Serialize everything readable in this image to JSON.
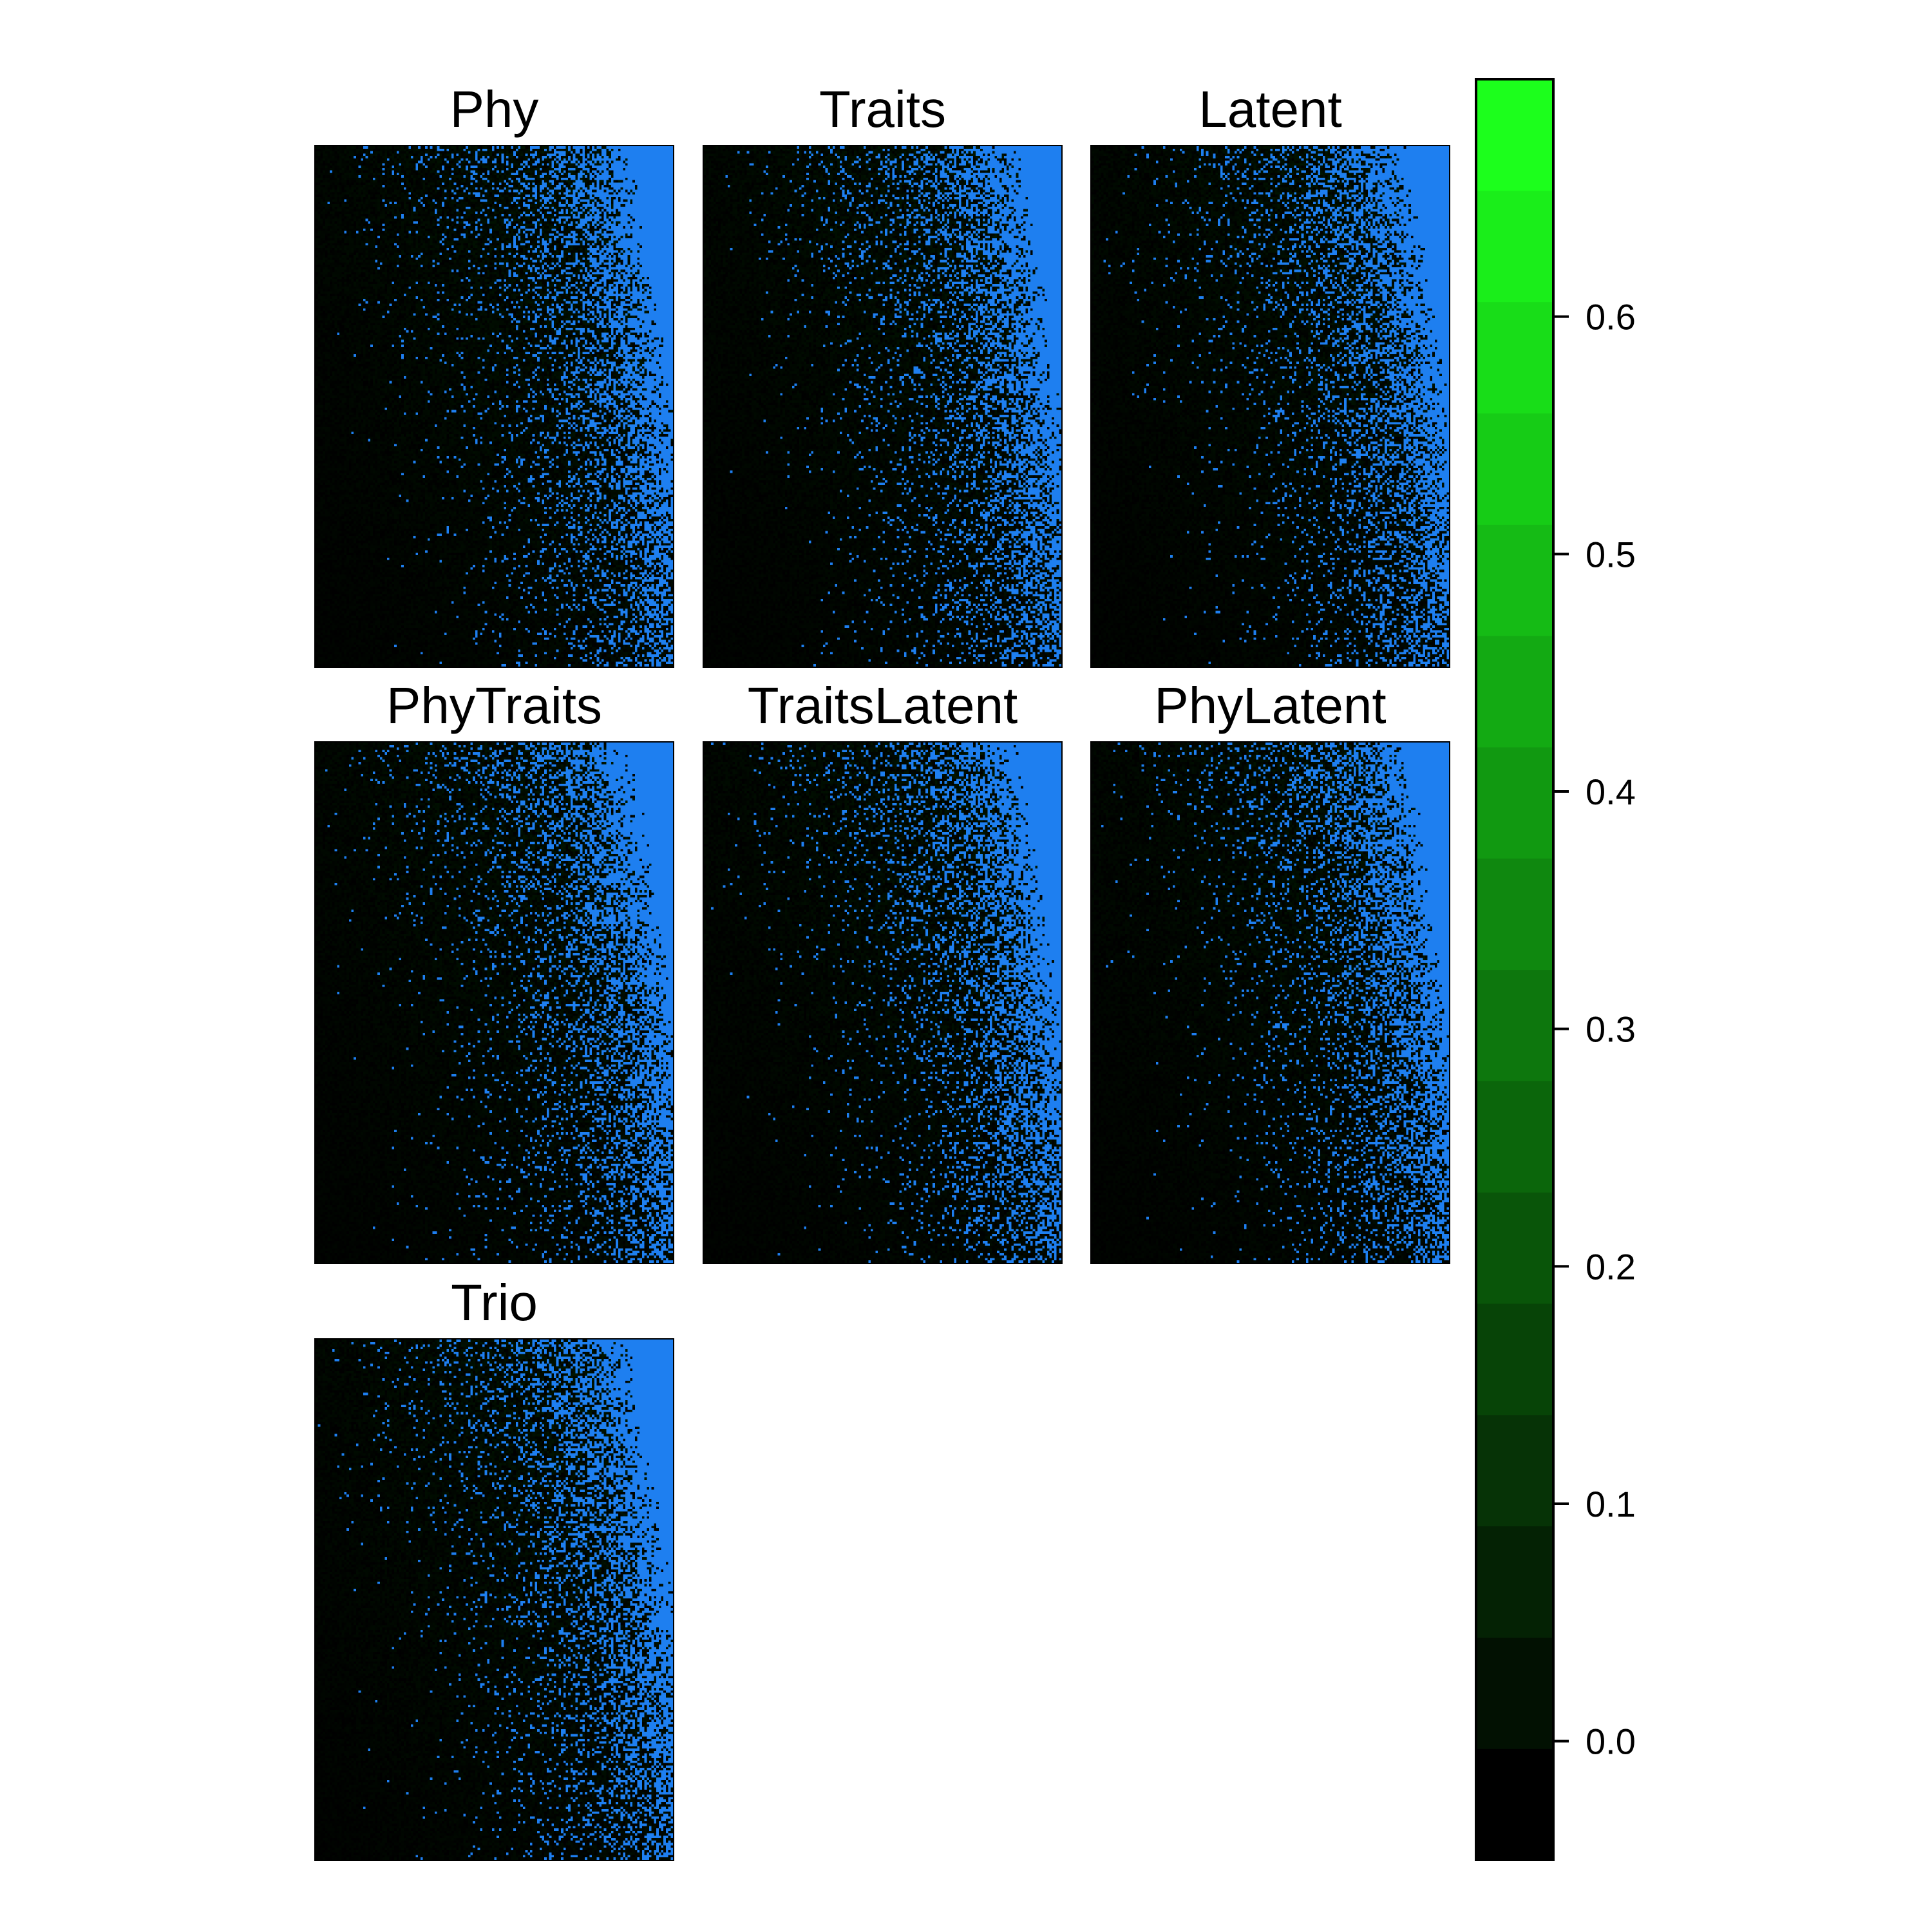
{
  "chart_data": {
    "type": "heatmap",
    "layout": {
      "rows": 3,
      "columns": 3
    },
    "panels": [
      {
        "name": "Phy"
      },
      {
        "name": "Traits"
      },
      {
        "name": "Latent"
      },
      {
        "name": "PhyTraits"
      },
      {
        "name": "TraitsLatent"
      },
      {
        "name": "PhyLatent"
      },
      {
        "name": "Trio"
      }
    ],
    "colorbar": {
      "range": [
        -0.05,
        0.7
      ],
      "ticks": [
        0.0,
        0.1,
        0.2,
        0.3,
        0.4,
        0.5,
        0.6
      ],
      "tick_labels": [
        "0.0",
        "0.1",
        "0.2",
        "0.3",
        "0.4",
        "0.5",
        "0.6"
      ],
      "bands": 16,
      "low_color": "#000000",
      "high_color": "#1cff1c"
    },
    "colors": {
      "background": "#000000",
      "present": "#1e7ff0",
      "grid_line": "#2a5a1a"
    },
    "grid": false,
    "legend": "right"
  }
}
